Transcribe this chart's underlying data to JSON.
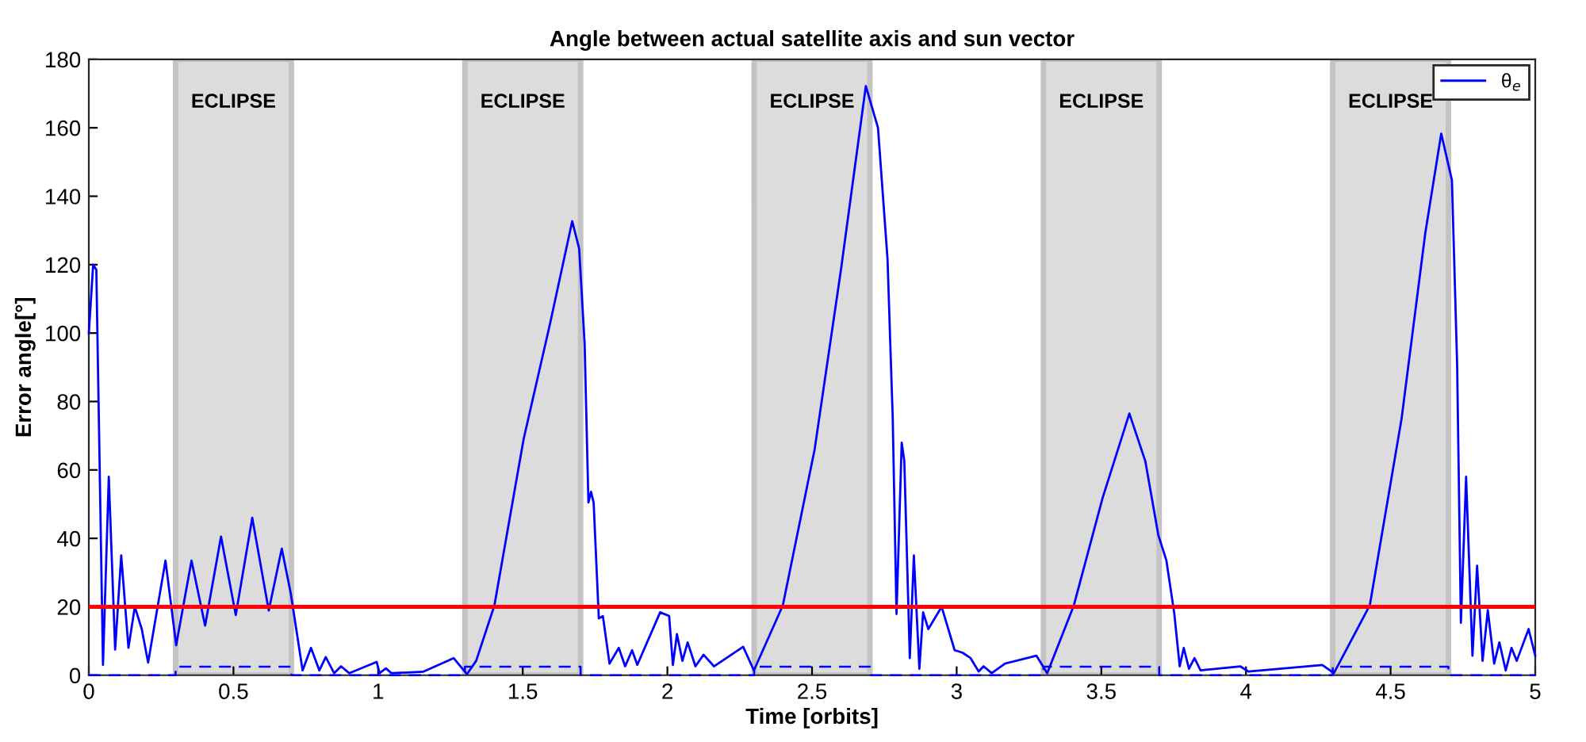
{
  "chart_data": {
    "type": "line",
    "title": "Angle between actual satellite axis and sun vector",
    "xlabel": "Time [orbits]",
    "ylabel": "Error angle[°]",
    "xlim": [
      0,
      5
    ],
    "xticks": [
      0,
      0.5,
      1,
      1.5,
      2,
      2.5,
      3,
      3.5,
      4,
      4.5,
      5
    ],
    "ylim": [
      0,
      180
    ],
    "yticks": [
      0,
      20,
      40,
      60,
      80,
      100,
      120,
      140,
      160,
      180
    ],
    "grid": false,
    "legend": "top right",
    "marker": "none",
    "series": [
      {
        "name": "θ$_{e}$",
        "color": "#0000ff",
        "line_style": "solid",
        "x": [
          0,
          0.015,
          0.026,
          0.049,
          0.069,
          0.091,
          0.112,
          0.137,
          0.159,
          0.183,
          0.205,
          0.265,
          0.302,
          0.355,
          0.402,
          0.457,
          0.508,
          0.565,
          0.622,
          0.667,
          0.698,
          0.739,
          0.768,
          0.797,
          0.819,
          0.848,
          0.872,
          0.9,
          0.995,
          1.005,
          1.027,
          1.046,
          1.155,
          1.261,
          1.307,
          1.339,
          1.402,
          1.503,
          1.595,
          1.671,
          1.695,
          1.714,
          1.727,
          1.736,
          1.745,
          1.763,
          1.777,
          1.8,
          1.832,
          1.854,
          1.878,
          1.896,
          1.975,
          2.006,
          2.019,
          2.033,
          2.052,
          2.07,
          2.097,
          2.125,
          2.161,
          2.262,
          2.299,
          2.399,
          2.509,
          2.6,
          2.686,
          2.728,
          2.761,
          2.779,
          2.792,
          2.81,
          2.819,
          2.838,
          2.852,
          2.871,
          2.884,
          2.902,
          2.948,
          2.993,
          3.02,
          3.048,
          3.076,
          3.093,
          3.121,
          3.167,
          3.276,
          3.313,
          3.405,
          3.505,
          3.597,
          3.652,
          3.697,
          3.725,
          3.752,
          3.771,
          3.785,
          3.803,
          3.822,
          3.843,
          3.98,
          4.008,
          4.264,
          4.304,
          4.428,
          4.538,
          4.62,
          4.675,
          4.712,
          4.73,
          4.743,
          4.761,
          4.783,
          4.799,
          4.818,
          4.836,
          4.858,
          4.876,
          4.898,
          4.918,
          4.936,
          4.977,
          5.0
        ],
        "values": [
          100,
          120,
          118.5,
          3,
          58,
          7.5,
          35,
          8,
          20,
          13.5,
          3.7,
          33.5,
          8.8,
          33.5,
          14.5,
          40.5,
          17.6,
          46,
          18.9,
          37,
          24,
          1.4,
          8,
          1.4,
          5.3,
          0.6,
          2.6,
          0.6,
          3.9,
          0.6,
          2,
          0.6,
          1,
          5,
          0.3,
          4.2,
          20.4,
          69,
          103,
          132.7,
          124.7,
          96.8,
          50.5,
          53.6,
          50.5,
          16.6,
          17.3,
          3.4,
          8,
          2.6,
          7.3,
          3,
          18.4,
          17.3,
          3,
          12,
          4.2,
          9.6,
          2.6,
          6,
          2.6,
          8.3,
          1.4,
          20.4,
          66,
          118.5,
          172.2,
          160,
          121.6,
          75,
          17.9,
          68,
          62.6,
          5,
          35,
          1.9,
          18.4,
          13.5,
          20,
          7.3,
          6.6,
          5,
          1.1,
          2.6,
          0.6,
          3.4,
          5.7,
          0.6,
          20.4,
          52,
          76.5,
          62.6,
          41,
          33.5,
          18.2,
          2.6,
          8,
          1.9,
          5,
          1.4,
          2.6,
          1.1,
          3,
          0.6,
          20.4,
          75,
          129.3,
          158.3,
          144.7,
          90.7,
          15.3,
          58,
          5.7,
          32,
          4.2,
          19,
          3.4,
          9.6,
          1.4,
          8,
          4.2,
          13.5,
          5.7
        ]
      },
      {
        "color": "#0000ff",
        "line_style": "dashed",
        "x": [
          0,
          0.3,
          0.3,
          0.7,
          0.7,
          1.3,
          1.3,
          1.7,
          1.7,
          2.3,
          2.3,
          2.7,
          2.7,
          3.3,
          3.3,
          3.7,
          3.7,
          4.3,
          4.3,
          4.7,
          4.7,
          5
        ],
        "values": [
          0,
          0,
          2.5,
          2.5,
          0,
          0,
          2.5,
          2.5,
          0,
          0,
          2.5,
          2.5,
          0,
          0,
          2.5,
          2.5,
          0,
          0,
          2.5,
          2.5,
          0,
          0
        ]
      }
    ],
    "ref_lines": [
      {
        "axis": "y",
        "value": 20,
        "color": "#ff0000"
      }
    ],
    "bands": [
      {
        "axis": "x",
        "from": 0.3,
        "to": 0.7,
        "label": "ECLIPSE",
        "color": "#d9d9d9"
      },
      {
        "axis": "x",
        "from": 1.3,
        "to": 1.7,
        "label": "ECLIPSE",
        "color": "#d9d9d9"
      },
      {
        "axis": "x",
        "from": 2.3,
        "to": 2.7,
        "label": "ECLIPSE",
        "color": "#d9d9d9"
      },
      {
        "axis": "x",
        "from": 3.3,
        "to": 3.7,
        "label": "ECLIPSE",
        "color": "#d9d9d9"
      },
      {
        "axis": "x",
        "from": 4.3,
        "to": 4.7,
        "label": "ECLIPSE",
        "color": "#d9d9d9"
      }
    ]
  }
}
